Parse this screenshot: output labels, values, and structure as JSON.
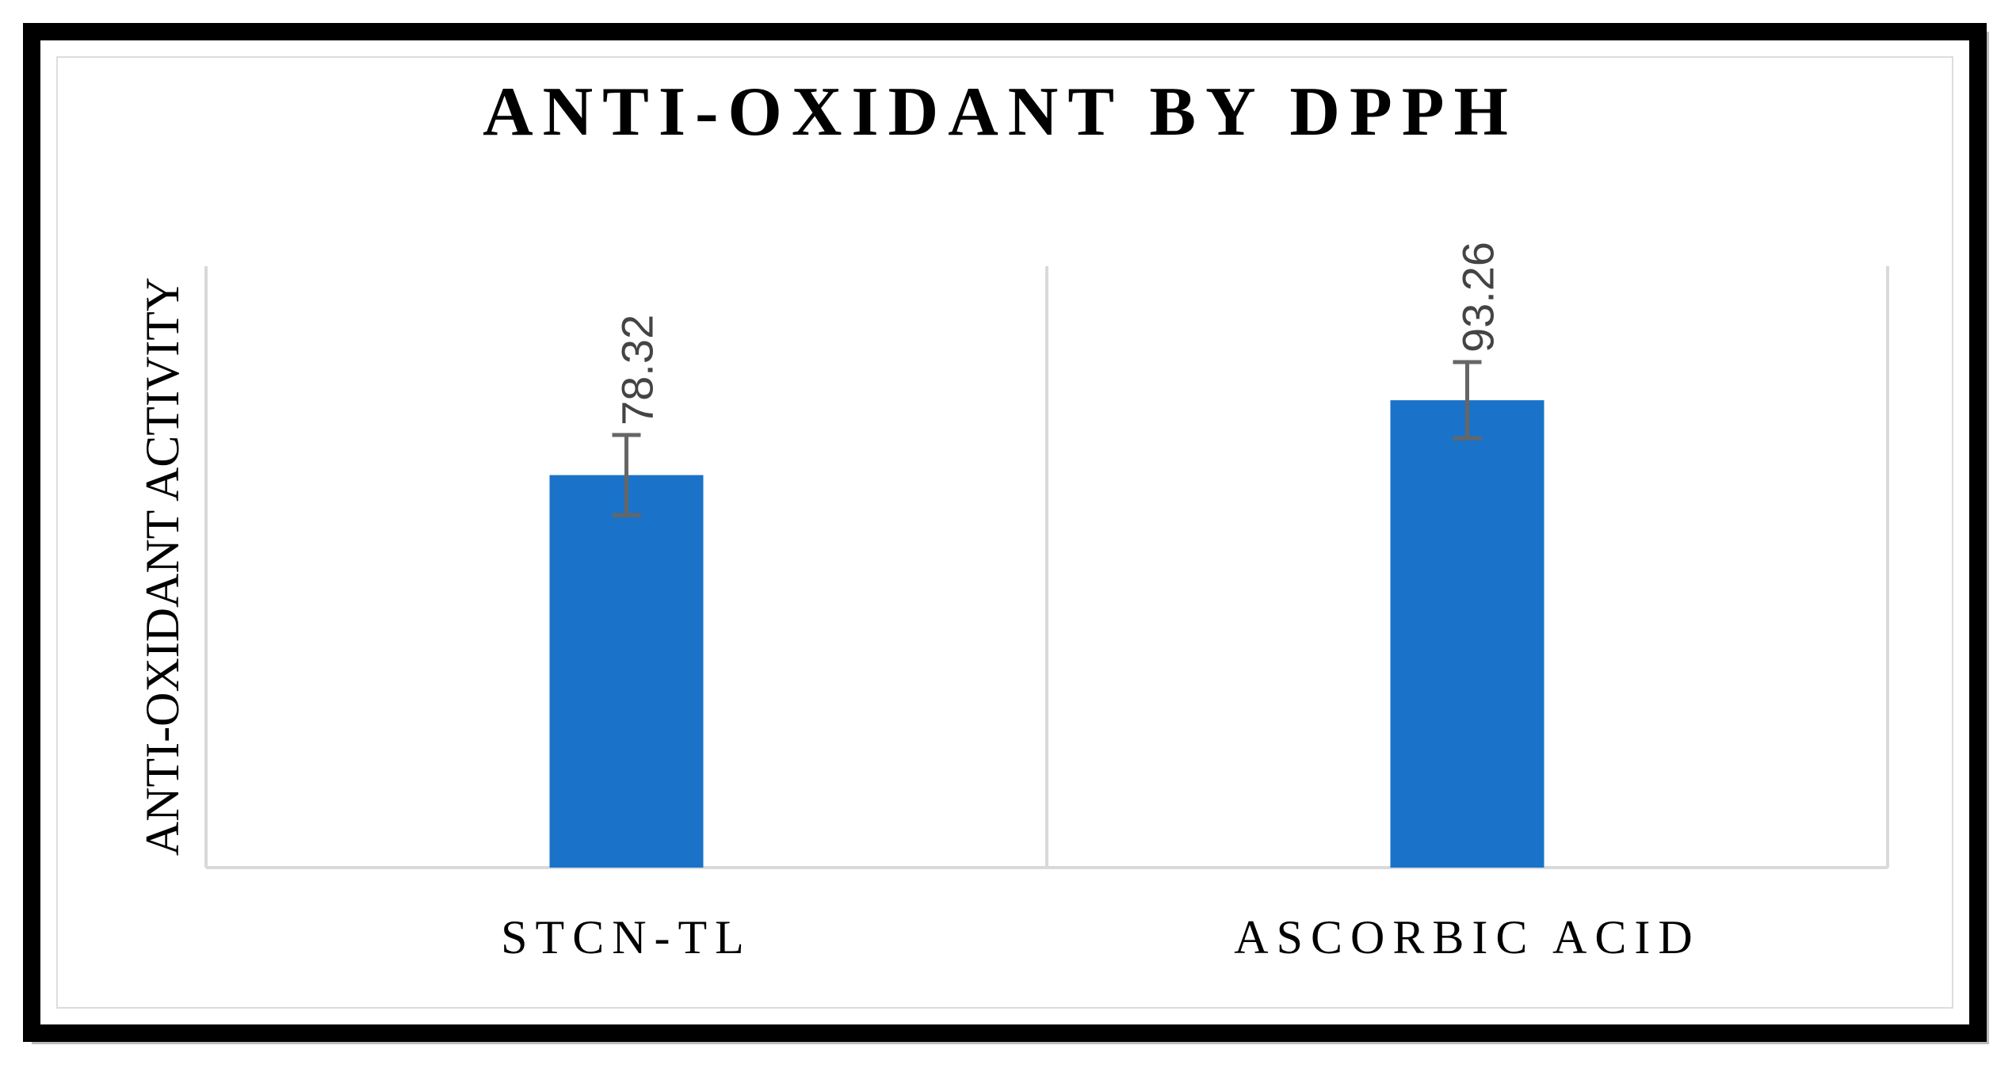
{
  "chart_data": {
    "type": "bar",
    "title": "ANTI-OXIDANT BY DPPH",
    "y_label": "ANTI-OXIDANT  ACTIVITY",
    "categories": [
      "STCN-TL",
      "ASCORBIC ACID"
    ],
    "values": [
      78.32,
      93.26
    ],
    "errors": [
      8,
      7.6
    ],
    "color": "#1a73c9",
    "error_color": "#666666",
    "ylim": [
      0,
      120
    ]
  }
}
